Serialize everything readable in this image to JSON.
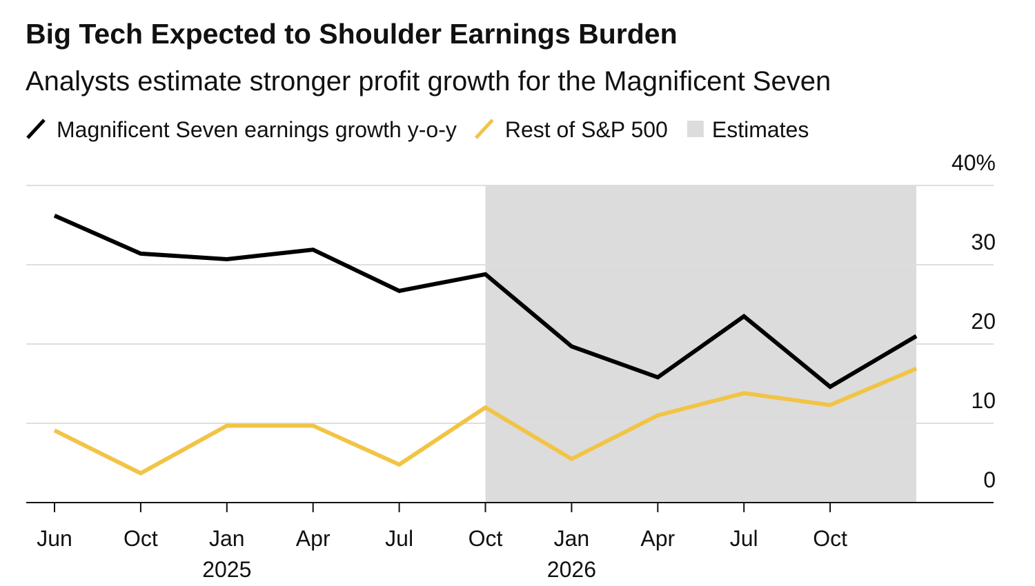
{
  "chart_data": {
    "type": "line",
    "title": "Big Tech Expected to Shoulder Earnings Burden",
    "subtitle": "Analysts estimate stronger profit growth for the Magnificent Seven",
    "categories": [
      "Jun",
      "Oct",
      "Jan",
      "Apr",
      "Jul",
      "Oct",
      "Jan",
      "Apr",
      "Jul",
      "Oct",
      null
    ],
    "year_labels": [
      null,
      null,
      "2025",
      null,
      null,
      null,
      "2026",
      null,
      null,
      null,
      null
    ],
    "series": [
      {
        "name": "Magnificent Seven earnings growth y-o-y",
        "color": "#000000",
        "values": [
          36.2,
          31.4,
          30.7,
          31.9,
          26.7,
          28.8,
          19.7,
          15.8,
          23.5,
          14.6,
          21.0
        ]
      },
      {
        "name": "Rest of S&P 500",
        "color": "#f2c446",
        "values": [
          9.1,
          3.7,
          9.7,
          9.7,
          4.8,
          12.0,
          5.5,
          11.0,
          13.8,
          12.3,
          16.9
        ]
      }
    ],
    "shaded_region": {
      "name": "Estimates",
      "color": "#dcdcdc",
      "from": 5,
      "to": 10
    },
    "ylim": [
      0,
      40
    ],
    "yticks": [
      0,
      10,
      20,
      30,
      {
        "value": 40,
        "label": "40%"
      }
    ],
    "grid": true,
    "y_axis_side": "right"
  }
}
